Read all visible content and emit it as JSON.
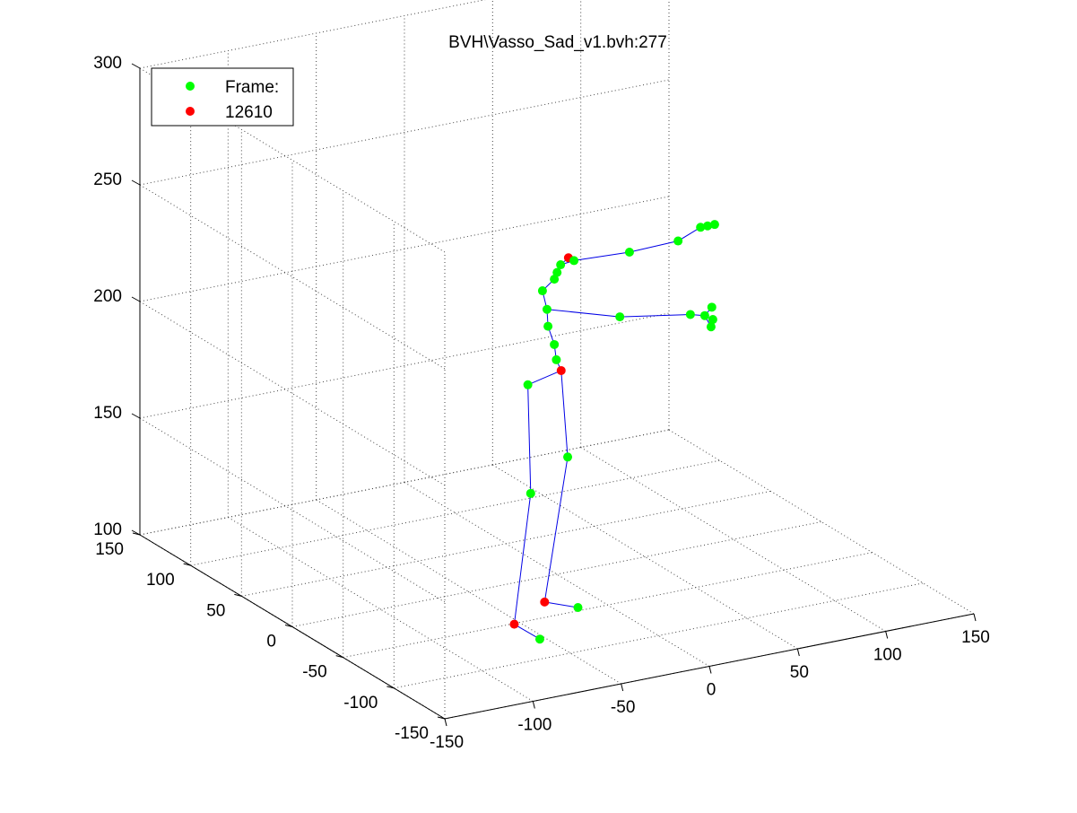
{
  "chart_data": {
    "type": "scatter",
    "title": "BVH\\Vasso_Sad_v1.bvh:277",
    "legend": {
      "placement": "top-left",
      "entries": [
        {
          "label": "Frame:",
          "color": "#00ff00",
          "marker": "dot"
        },
        {
          "label": "12610",
          "color": "#ff0000",
          "marker": "dot"
        }
      ]
    },
    "grid": true,
    "view": "3d",
    "xlabel": "",
    "ylabel": "",
    "zlabel": "",
    "xlim": [
      -150,
      150
    ],
    "ylim": [
      -150,
      150
    ],
    "zlim": [
      100,
      300
    ],
    "x_ticks": [
      "-150",
      "-100",
      "-50",
      "0",
      "50",
      "100",
      "150"
    ],
    "y_ticks": [
      "-150",
      "-100",
      "-50",
      "0",
      "50",
      "100",
      "150"
    ],
    "z_ticks": [
      "100",
      "150",
      "200",
      "250",
      "300"
    ],
    "bone_color": "#0000e6",
    "joints": [
      {
        "name": "head-top",
        "color": "red",
        "x": 44,
        "y": 65,
        "z": 212
      },
      {
        "name": "head",
        "color": "green",
        "x": 39,
        "y": 64,
        "z": 210
      },
      {
        "name": "neck",
        "color": "green",
        "x": 46,
        "y": 63,
        "z": 211
      },
      {
        "name": "neck-2",
        "color": "green",
        "x": 37,
        "y": 64,
        "z": 207
      },
      {
        "name": "spine-4",
        "color": "green",
        "x": 36,
        "y": 65,
        "z": 204
      },
      {
        "name": "spine-3",
        "color": "green",
        "x": 31,
        "y": 68,
        "z": 199
      },
      {
        "name": "spine-2",
        "color": "green",
        "x": 33,
        "y": 67,
        "z": 191
      },
      {
        "name": "spine-1",
        "color": "green",
        "x": 33,
        "y": 66,
        "z": 184
      },
      {
        "name": "spine-0",
        "color": "green",
        "x": 36,
        "y": 65,
        "z": 176
      },
      {
        "name": "hips-upper",
        "color": "green",
        "x": 36,
        "y": 63,
        "z": 170
      },
      {
        "name": "hips",
        "color": "red",
        "x": 37,
        "y": 60,
        "z": 166
      },
      {
        "name": "r-shoulder",
        "color": "green",
        "x": 74,
        "y": 57,
        "z": 212
      },
      {
        "name": "r-elbow",
        "color": "green",
        "x": 101,
        "y": 56,
        "z": 213
      },
      {
        "name": "r-hand-1",
        "color": "green",
        "x": 112,
        "y": 53,
        "z": 218
      },
      {
        "name": "r-hand-2",
        "color": "green",
        "x": 116,
        "y": 53,
        "z": 218
      },
      {
        "name": "r-hand-3",
        "color": "green",
        "x": 120,
        "y": 53,
        "z": 218
      },
      {
        "name": "l-arm-1",
        "color": "green",
        "x": 72,
        "y": 63,
        "z": 183
      },
      {
        "name": "l-elbow",
        "color": "green",
        "x": 112,
        "y": 63,
        "z": 178
      },
      {
        "name": "l-hand-1",
        "color": "green",
        "x": 119,
        "y": 61,
        "z": 177
      },
      {
        "name": "l-hand-2",
        "color": "green",
        "x": 123,
        "y": 61,
        "z": 180
      },
      {
        "name": "l-hand-3",
        "color": "green",
        "x": 123,
        "y": 60,
        "z": 175
      },
      {
        "name": "l-hand-4",
        "color": "green",
        "x": 122,
        "y": 60,
        "z": 172
      },
      {
        "name": "l-hip",
        "color": "green",
        "x": 21,
        "y": 65,
        "z": 161
      },
      {
        "name": "l-knee",
        "color": "green",
        "x": 18,
        "y": 57,
        "z": 117
      },
      {
        "name": "l-ankle",
        "color": "red",
        "x": -4,
        "y": 35,
        "z": 70
      },
      {
        "name": "l-toe",
        "color": "green",
        "x": 3,
        "y": 22,
        "z": 66
      },
      {
        "name": "r-knee",
        "color": "green",
        "x": 43,
        "y": 64,
        "z": 127
      },
      {
        "name": "r-ankle",
        "color": "red",
        "x": 23,
        "y": 52,
        "z": 71
      },
      {
        "name": "r-toe",
        "color": "green",
        "x": 35,
        "y": 40,
        "z": 70
      }
    ],
    "bones": [
      [
        "head-top",
        "head"
      ],
      [
        "head",
        "neck"
      ],
      [
        "head",
        "neck-2"
      ],
      [
        "neck-2",
        "spine-4"
      ],
      [
        "spine-4",
        "spine-3"
      ],
      [
        "spine-3",
        "spine-2"
      ],
      [
        "spine-2",
        "spine-1"
      ],
      [
        "spine-1",
        "spine-0"
      ],
      [
        "spine-0",
        "hips-upper"
      ],
      [
        "hips-upper",
        "hips"
      ],
      [
        "neck",
        "r-shoulder"
      ],
      [
        "r-shoulder",
        "r-elbow"
      ],
      [
        "r-elbow",
        "r-hand-1"
      ],
      [
        "r-hand-1",
        "r-hand-2"
      ],
      [
        "r-hand-2",
        "r-hand-3"
      ],
      [
        "spine-2",
        "l-arm-1"
      ],
      [
        "l-arm-1",
        "l-elbow"
      ],
      [
        "l-elbow",
        "l-hand-1"
      ],
      [
        "l-hand-1",
        "l-hand-2"
      ],
      [
        "l-hand-1",
        "l-hand-3"
      ],
      [
        "l-hand-1",
        "l-hand-4"
      ],
      [
        "hips",
        "l-hip"
      ],
      [
        "l-hip",
        "l-knee"
      ],
      [
        "l-knee",
        "l-ankle"
      ],
      [
        "l-ankle",
        "l-toe"
      ],
      [
        "hips",
        "r-knee"
      ],
      [
        "r-knee",
        "r-ankle"
      ],
      [
        "r-ankle",
        "r-toe"
      ]
    ]
  }
}
